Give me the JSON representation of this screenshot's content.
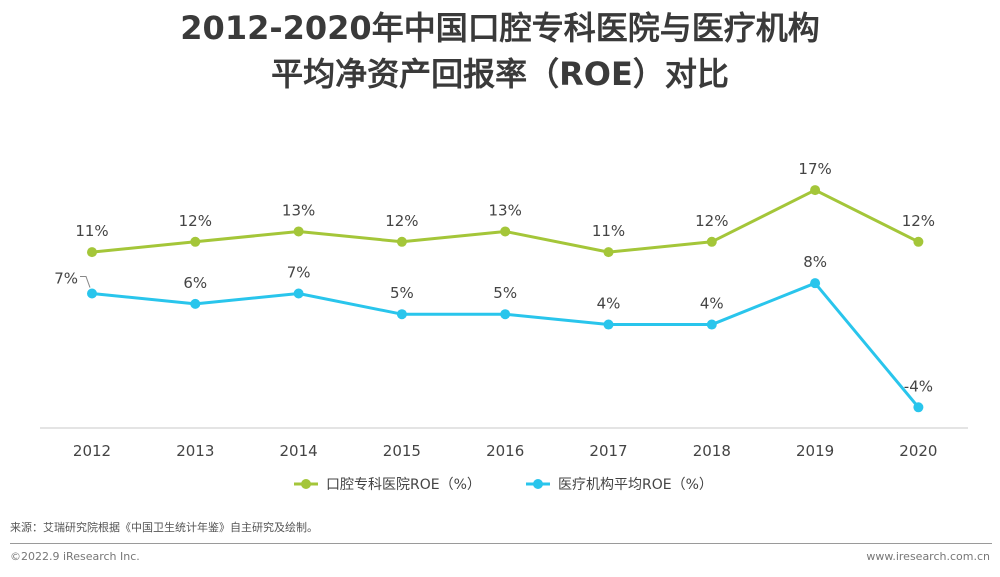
{
  "title": {
    "line1": "2012-2020年中国口腔专科医院与医疗机构",
    "line2": "平均净资产回报率（ROE）对比"
  },
  "chart_data": {
    "type": "line",
    "x": [
      "2012",
      "2013",
      "2014",
      "2015",
      "2016",
      "2017",
      "2018",
      "2019",
      "2020"
    ],
    "series": [
      {
        "name": "口腔专科医院ROE（%）",
        "values": [
          11,
          12,
          13,
          12,
          13,
          11,
          12,
          17,
          12
        ],
        "labels": [
          "11%",
          "12%",
          "13%",
          "12%",
          "13%",
          "11%",
          "12%",
          "17%",
          "12%"
        ],
        "color": "#a4c639"
      },
      {
        "name": "医疗机构平均ROE（%）",
        "values": [
          7,
          6,
          7,
          5,
          5,
          4,
          4,
          8,
          -4
        ],
        "labels": [
          "7%",
          "6%",
          "7%",
          "5%",
          "5%",
          "4%",
          "4%",
          "8%",
          "-4%"
        ],
        "color": "#29c5ec"
      }
    ],
    "ylim": [
      -6,
      23
    ],
    "grid": false,
    "legend_position": "bottom-center"
  },
  "source_note": "来源：艾瑞研究院根据《中国卫生统计年鉴》自主研究及绘制。",
  "footer": {
    "copyright": "©2022.9 iResearch Inc.",
    "website": "www.iresearch.com.cn"
  }
}
